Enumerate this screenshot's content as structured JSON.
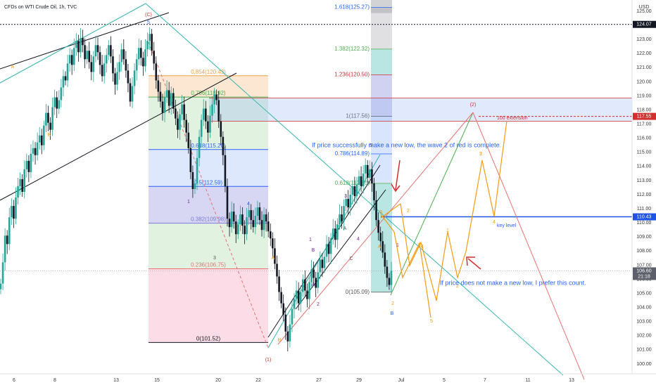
{
  "header": {
    "title": "CFDs on WTI Crude Oil, 1h, TVC"
  },
  "colors": {
    "up": "#26a69a",
    "down": "#ef5350",
    "fib_top_gray": "#a5a7ab",
    "fib_teal": "#36b5b0",
    "fib_green": "#9ad39a",
    "fib_red": "#e57373",
    "fib_blue": "#90b4f5",
    "fib_purple": "#7a7ad6",
    "fib_orange": "#f6b26b",
    "fib_pink": "#f48fb1",
    "text_blue": "#2962ff",
    "wave_orange": "#f39c12",
    "wave_red": "#d32f2f",
    "wave_purple": "#7b1fa2"
  },
  "chart_data": {
    "type": "candlestick",
    "price_axis": {
      "currency": "USD",
      "ylim": [
        99.3,
        125.8
      ],
      "ticks": [
        "100.00",
        "101.00",
        "102.00",
        "103.00",
        "104.00",
        "105.00",
        "106.00",
        "107.00",
        "108.00",
        "109.00",
        "110.00",
        "111.00",
        "112.00",
        "113.00",
        "114.00",
        "115.00",
        "116.00",
        "117.00",
        "118.00",
        "119.00",
        "120.00",
        "121.00",
        "122.00",
        "123.00",
        "124.00",
        "125.00"
      ],
      "price_labels": [
        {
          "value": 124.07,
          "label": "124.07",
          "bg": "#131722",
          "fg": "#ffffff"
        },
        {
          "value": 117.55,
          "label": "117.55",
          "bg": "#d32f2f",
          "fg": "#ffffff"
        },
        {
          "value": 110.43,
          "label": "110.43",
          "bg": "#1e53e5",
          "fg": "#ffffff"
        },
        {
          "value": 106.6,
          "label": "106.60",
          "sublabel": "21:18",
          "bg": "#5d606b",
          "fg": "#ffffff"
        }
      ]
    },
    "time_axis": {
      "ticks": [
        "6",
        "8",
        "13",
        "15",
        "20",
        "22",
        "27",
        "29",
        "Jul",
        "5",
        "7",
        "11",
        "13"
      ]
    },
    "fib_left": {
      "levels": [
        {
          "label": "0.854(120.43)",
          "value": 120.43
        },
        {
          "label": "0.786(118.92)",
          "value": 118.92
        },
        {
          "label": "0.618(115.20)",
          "value": 115.2
        },
        {
          "label": "0.5(112.59)",
          "value": 112.59
        },
        {
          "label": "0.382(109.98)",
          "value": 109.98
        },
        {
          "label": "0.236(106.75)",
          "value": 106.75
        },
        {
          "label": "0(101.52)",
          "value": 101.52
        }
      ]
    },
    "fib_right": {
      "levels": [
        {
          "label": "1.618(125.27)",
          "value": 125.27
        },
        {
          "label": "1.382(122.32)",
          "value": 122.32
        },
        {
          "label": "1.236(120.50)",
          "value": 120.5
        },
        {
          "label": "1(117.56)",
          "value": 117.56
        },
        {
          "label": "0.786(114.89)",
          "value": 114.89
        },
        {
          "label": "0.618(112.80)",
          "value": 112.8
        },
        {
          "label": "0(105.09)",
          "value": 105.09
        }
      ]
    },
    "annotations": [
      {
        "text": "If price successfully make a new low, the wave 2 of red is complete",
        "color": "#2962ff"
      },
      {
        "text": "If price does not make a new low, I prefer this count.",
        "color": "#2962ff"
      },
      {
        "text": "100 extension",
        "color": "#d32f2f"
      },
      {
        "text": "key level",
        "color": "#2962ff"
      }
    ],
    "wave_labels": [
      {
        "text": "(C)",
        "color": "#d32f2f"
      },
      {
        "text": "5",
        "color": "#2962ff"
      },
      {
        "text": "A",
        "color": "#f39c12"
      },
      {
        "text": "B",
        "color": "#f39c12"
      },
      {
        "text": "1",
        "color": "#7b1fa2"
      },
      {
        "text": "3",
        "color": "#555555"
      },
      {
        "text": "4",
        "color": "#2962ff"
      },
      {
        "text": "A",
        "color": "#f39c12"
      },
      {
        "text": "(1)",
        "color": "#d32f2f"
      },
      {
        "text": "B",
        "color": "#f39c12"
      },
      {
        "text": "1",
        "color": "#7b1fa2"
      },
      {
        "text": "B",
        "color": "#7b1fa2"
      },
      {
        "text": "A",
        "color": "#7b1fa2"
      },
      {
        "text": "2",
        "color": "#7b1fa2"
      },
      {
        "text": "3",
        "color": "#7b1fa2"
      },
      {
        "text": "A",
        "color": "#555555"
      },
      {
        "text": "C",
        "color": "#555555"
      },
      {
        "text": "4",
        "color": "#7b1fa2"
      },
      {
        "text": "5",
        "color": "#555555"
      },
      {
        "text": "B",
        "color": "#f39c12"
      },
      {
        "text": "A",
        "color": "#f39c12"
      },
      {
        "text": "2",
        "color": "#f39c12"
      },
      {
        "text": "1",
        "color": "#d32f2f"
      },
      {
        "text": "B",
        "color": "#2962ff"
      },
      {
        "text": "2",
        "color": "#f39c12"
      },
      {
        "text": "1",
        "color": "#f39c12"
      },
      {
        "text": "3",
        "color": "#f39c12"
      },
      {
        "text": "4",
        "color": "#f39c12"
      },
      {
        "text": "5",
        "color": "#f39c12"
      },
      {
        "text": "(2)",
        "color": "#d32f2f"
      },
      {
        "text": "3",
        "color": "#f39c12"
      },
      {
        "text": "4",
        "color": "#f39c12"
      },
      {
        "text": "2",
        "color": "#f39c12"
      }
    ],
    "price_path_close": [
      105.7,
      107.2,
      109.1,
      108.5,
      110.4,
      111.2,
      110.3,
      111.8,
      112.6,
      113.1,
      112.2,
      113.8,
      114.4,
      113.6,
      114.9,
      115.3,
      114.8,
      115.7,
      116.2,
      115.5,
      116.9,
      117.8,
      117.1,
      116.6,
      118.2,
      118.9,
      118.1,
      118.7,
      119.6,
      120.4,
      120.1,
      121.3,
      121.9,
      121.2,
      122.4,
      122.9,
      122.1,
      123.1,
      122.6,
      121.6,
      122.2,
      121.4,
      120.7,
      121.8,
      122.6,
      122.1,
      121.2,
      120.4,
      121.3,
      121.9,
      122.6,
      121.8,
      120.6,
      119.8,
      120.7,
      121.4,
      122.3,
      121.6,
      120.8,
      119.9,
      118.6,
      119.7,
      120.8,
      121.6,
      122.4,
      121.7,
      121.1,
      122.3,
      122.9,
      123.4,
      122.2,
      121.3,
      120.1,
      119.3,
      118.6,
      117.8,
      118.9,
      119.4,
      118.3,
      119.2,
      118.1,
      117.4,
      116.6,
      117.7,
      118.4,
      117.3,
      116.4,
      115.3,
      113.6,
      112.4,
      112.8,
      114.6,
      116.1,
      117.3,
      118.1,
      117.2,
      116.4,
      117.6,
      118.4,
      119.1,
      118.7,
      117.2,
      116.1,
      114.8,
      112.6,
      110.3,
      109.7,
      110.8,
      110.1,
      109.2,
      109.9,
      110.6,
      109.8,
      109.2,
      110.4,
      110.9,
      110.2,
      109.7,
      110.5,
      111.1,
      110.2,
      109.5,
      110.6,
      110.1,
      109.4,
      108.9,
      108.2,
      107.1,
      106.2,
      105.1,
      104.3,
      103.5,
      102.3,
      101.6,
      102.8,
      103.9,
      104.6,
      105.2,
      104.3,
      105.1,
      106.0,
      105.2,
      104.6,
      105.8,
      106.7,
      106.1,
      105.4,
      106.5,
      107.4,
      106.8,
      107.6,
      108.5,
      107.8,
      108.9,
      109.6,
      108.8,
      109.9,
      110.6,
      110.1,
      111.2,
      111.7,
      111.1,
      112.0,
      112.6,
      111.9,
      112.7,
      113.3,
      112.6,
      113.5,
      114.1,
      113.2,
      113.8,
      112.8,
      111.6,
      110.2,
      109.3,
      108.7,
      107.9,
      106.9,
      106.1,
      105.6,
      106.6
    ]
  }
}
